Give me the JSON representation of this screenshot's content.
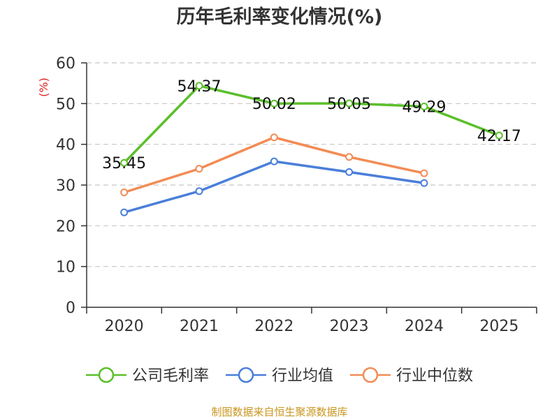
{
  "chart_data": {
    "type": "line",
    "title": "历年毛利率变化情况(%)",
    "ylabel": "(%)",
    "xlabel": "",
    "categories": [
      "2020",
      "2021",
      "2022",
      "2023",
      "2024",
      "2025"
    ],
    "ylim": [
      0,
      60
    ],
    "yticks": [
      0,
      10,
      20,
      30,
      40,
      50,
      60
    ],
    "grid": true,
    "legend_position": "bottom",
    "series": [
      {
        "name": "公司毛利率",
        "color": "#5bbf2a",
        "values": [
          35.45,
          54.37,
          50.02,
          50.05,
          49.29,
          42.17
        ],
        "labels": [
          "35.45",
          "54.37",
          "50.02",
          "50.05",
          "49.29",
          "42.17"
        ]
      },
      {
        "name": "行业均值",
        "color": "#4a7fd9",
        "values": [
          23.3,
          28.5,
          35.8,
          33.2,
          30.5,
          null
        ]
      },
      {
        "name": "行业中位数",
        "color": "#f28c55",
        "values": [
          28.2,
          34.0,
          41.7,
          36.9,
          32.9,
          null
        ]
      }
    ]
  },
  "source_text": "制图数据来自恒生聚源数据库"
}
